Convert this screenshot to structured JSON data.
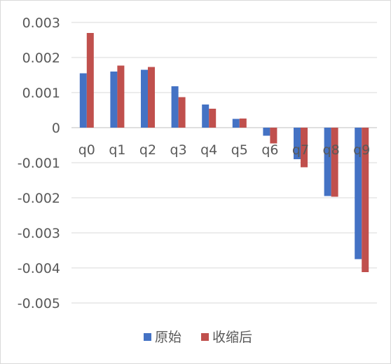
{
  "chart_data": {
    "type": "bar",
    "categories": [
      "q0",
      "q1",
      "q2",
      "q3",
      "q4",
      "q5",
      "q6",
      "q7",
      "q8",
      "q9"
    ],
    "series": [
      {
        "name": "原始",
        "color": "#4472c4",
        "values": [
          0.00155,
          0.0016,
          0.00165,
          0.00118,
          0.00066,
          0.00025,
          -0.00023,
          -0.0009,
          -0.00195,
          -0.00375
        ]
      },
      {
        "name": "收缩后",
        "color": "#c0504d",
        "values": [
          0.0027,
          0.00177,
          0.00173,
          0.00087,
          0.00054,
          0.00026,
          -0.00045,
          -0.00113,
          -0.00197,
          -0.00412
        ]
      }
    ],
    "yticks": [
      "0.003",
      "0.002",
      "0.001",
      "0",
      "-0.001",
      "-0.002",
      "-0.003",
      "-0.004",
      "-0.005"
    ],
    "ylim": [
      -0.005,
      0.003
    ],
    "grid": true,
    "legend_position": "bottom"
  }
}
